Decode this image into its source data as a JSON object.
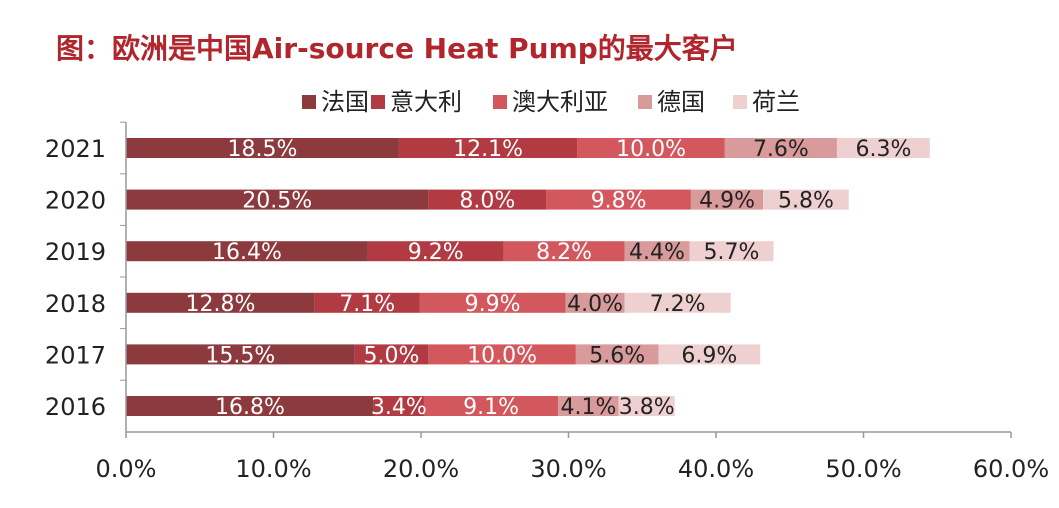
{
  "title": "图：欧洲是中国Air-source Heat Pump的最大客户",
  "chart_data": {
    "type": "bar",
    "orientation": "horizontal",
    "stacked": true,
    "title": "图：欧洲是中国Air-source Heat Pump的最大客户",
    "xlabel": "",
    "ylabel": "",
    "xlim": [
      0,
      60
    ],
    "x_ticks": [
      "0.0%",
      "10.0%",
      "20.0%",
      "30.0%",
      "40.0%",
      "50.0%",
      "60.0%"
    ],
    "categories": [
      "2021",
      "2020",
      "2019",
      "2018",
      "2017",
      "2016"
    ],
    "legend_position": "top",
    "grid": false,
    "series": [
      {
        "name": "法国",
        "color": "#8c3a3d",
        "values": [
          18.5,
          20.5,
          16.4,
          12.8,
          15.5,
          16.8
        ],
        "labels": [
          "18.5%",
          "20.5%",
          "16.4%",
          "12.8%",
          "15.5%",
          "16.8%"
        ]
      },
      {
        "name": "意大利",
        "color": "#b23b43",
        "values": [
          12.1,
          8.0,
          9.2,
          7.1,
          5.0,
          3.4
        ],
        "labels": [
          "12.1%",
          "8.0%",
          "9.2%",
          "7.1%",
          "5.0%",
          "3.4%"
        ]
      },
      {
        "name": "澳大利亚",
        "color": "#d3585e",
        "values": [
          10.0,
          9.8,
          8.2,
          9.9,
          10.0,
          9.1
        ],
        "labels": [
          "10.0%",
          "9.8%",
          "8.2%",
          "9.9%",
          "10.0%",
          "9.1%"
        ]
      },
      {
        "name": "德国",
        "color": "#d99a9b",
        "values": [
          7.6,
          4.9,
          4.4,
          4.0,
          5.6,
          4.1
        ],
        "labels": [
          "7.6%",
          "4.9%",
          "4.4%",
          "4.0%",
          "5.6%",
          "4.1%"
        ]
      },
      {
        "name": "荷兰",
        "color": "#efd0d1",
        "values": [
          6.3,
          5.8,
          5.7,
          7.2,
          6.9,
          3.8
        ],
        "labels": [
          "6.3%",
          "5.8%",
          "5.7%",
          "7.2%",
          "6.9%",
          "3.8%"
        ]
      }
    ],
    "label_colors": [
      "#ffffff",
      "#ffffff",
      "#ffffff",
      "#222222",
      "#222222"
    ]
  }
}
